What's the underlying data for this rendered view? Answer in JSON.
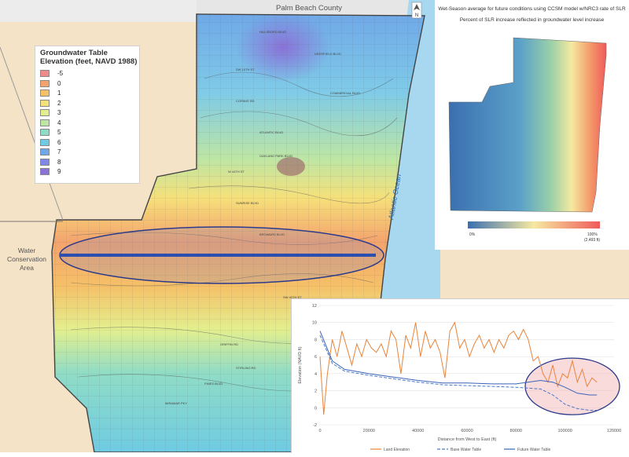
{
  "map": {
    "county_label": "Palm Beach County",
    "ocean_label": "Atlantic Ocean",
    "conservation_label_line1": "Water",
    "conservation_label_line2": "Conservation",
    "conservation_label_line3": "Area",
    "north_label": "N",
    "road_labels": [
      "HILLSBORO BLVD",
      "SW 10TH ST",
      "DEERFIELD BLVD",
      "COPANS RD",
      "ATLANTIC BLVD",
      "W 44TH ST",
      "SUNRISE BLVD",
      "BROWARD BLVD",
      "SW 40TH ST",
      "GRIFFIN RD",
      "STIRLING RD",
      "MIRAMAR PKY",
      "PINES BLVD",
      "COMMERCIAL BLVD",
      "OAKLAND PARK BLVD"
    ]
  },
  "legend": {
    "title": "Groundwater Table Elevation (feet, NAVD 1988)",
    "entries": [
      {
        "label": "-5",
        "color": "#f08a8a"
      },
      {
        "label": "0",
        "color": "#f4a36d"
      },
      {
        "label": "1",
        "color": "#f6c067"
      },
      {
        "label": "2",
        "color": "#f6e07a"
      },
      {
        "label": "3",
        "color": "#e3ef8e"
      },
      {
        "label": "4",
        "color": "#bde6a4"
      },
      {
        "label": "5",
        "color": "#8fdcc6"
      },
      {
        "label": "6",
        "color": "#6fcbe3"
      },
      {
        "label": "7",
        "color": "#6fa8e8"
      },
      {
        "label": "8",
        "color": "#7f88e4"
      },
      {
        "label": "9",
        "color": "#8a72d8"
      }
    ]
  },
  "inset": {
    "title_line1": "Wet-Season average for future conditions using CCSM model w/NRC3 rate of SLR",
    "title_line2": "Percent of SLR increase reflected in groundwater level increase",
    "scale_min_label": "0%",
    "scale_max_label": "100%",
    "scale_max_sublabel": "(2.493 ft)",
    "colors": {
      "low": "#3b6fb0",
      "mid": "#f6e9a0",
      "high": "#f05a5a"
    }
  },
  "chart_data": {
    "type": "line",
    "xlabel": "Distance from West to East (ft)",
    "ylabel": "Elevation (NAVD ft)",
    "xlim": [
      0,
      120000
    ],
    "ylim": [
      -2,
      12
    ],
    "x_ticks": [
      "0",
      "20000",
      "40000",
      "60000",
      "80000",
      "100000",
      "120000"
    ],
    "y_ticks": [
      "-2",
      "0",
      "2",
      "4",
      "6",
      "8",
      "10",
      "12"
    ],
    "series": [
      {
        "name": "Land Elevation",
        "color": "#e8843a",
        "dash": "",
        "x": [
          0,
          1500,
          3000,
          5000,
          7000,
          9000,
          11000,
          13000,
          15000,
          17000,
          19000,
          21000,
          23000,
          25000,
          27000,
          29000,
          31000,
          33000,
          35000,
          37000,
          39000,
          41000,
          43000,
          45000,
          47000,
          49000,
          51000,
          53000,
          55000,
          57000,
          59000,
          61000,
          63000,
          65000,
          67000,
          69000,
          71000,
          73000,
          75000,
          77000,
          79000,
          81000,
          83000,
          85000,
          87000,
          89000,
          91000,
          93000,
          95000,
          97000,
          99000,
          101000,
          103000,
          105000,
          107000,
          109000,
          111000,
          113000
        ],
        "y": [
          6,
          -0.8,
          4,
          8,
          6,
          9,
          7,
          5,
          7.5,
          6,
          8,
          7,
          6.5,
          7.5,
          6,
          9,
          8,
          4,
          8.5,
          7,
          10,
          6,
          9,
          7,
          8,
          6.5,
          3.5,
          9,
          10,
          7,
          8,
          6,
          7.5,
          8.5,
          7,
          8,
          6.5,
          8,
          7,
          8.5,
          9,
          8,
          9.2,
          8,
          5.5,
          6,
          4,
          3,
          5,
          2.5,
          4,
          3.5,
          5.5,
          3,
          4.5,
          2.5,
          3.5,
          3
        ]
      },
      {
        "name": "Base Water Table",
        "color": "#4a78c8",
        "dash": "4,2",
        "x": [
          0,
          5000,
          10000,
          20000,
          30000,
          40000,
          50000,
          60000,
          70000,
          80000,
          90000,
          95000,
          100000,
          105000,
          110000,
          113000
        ],
        "y": [
          8.5,
          5.2,
          4.3,
          3.8,
          3.4,
          3.0,
          2.7,
          2.6,
          2.5,
          2.4,
          2.2,
          1.5,
          0.4,
          -0.1,
          -0.3,
          -0.3
        ]
      },
      {
        "name": "Future Water Table",
        "color": "#3a64b8",
        "dash": "",
        "x": [
          0,
          5000,
          10000,
          20000,
          30000,
          40000,
          50000,
          60000,
          70000,
          80000,
          90000,
          95000,
          100000,
          105000,
          110000,
          113000
        ],
        "y": [
          9,
          5.5,
          4.5,
          4.0,
          3.6,
          3.2,
          2.9,
          2.9,
          2.8,
          2.8,
          3.2,
          3.0,
          2.4,
          1.7,
          1.5,
          1.5
        ]
      }
    ]
  }
}
